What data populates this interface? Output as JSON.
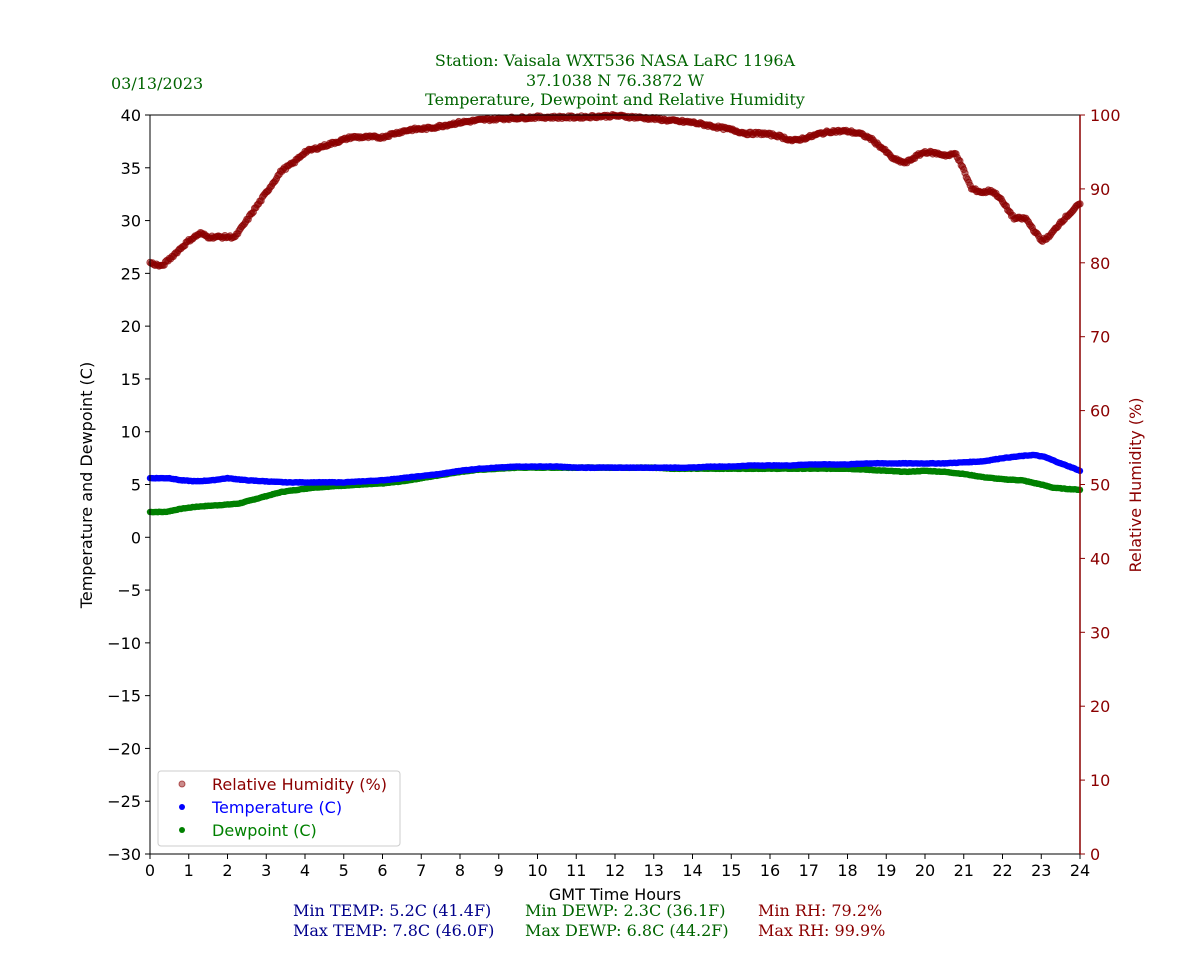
{
  "chart_data": {
    "type": "scatter",
    "title": {
      "line1": "Station:  Vaisala WXT536  NASA LaRC 1196A",
      "line2": "37.1038 N 76.3872 W",
      "line3": "Temperature, Dewpoint and Relative Humidity"
    },
    "date": "03/13/2023",
    "xlabel": "GMT Time Hours",
    "ylabel_left": "Temperature and Dewpoint (C)",
    "ylabel_right": "Relative Humidity (%)",
    "xlim": [
      0,
      24
    ],
    "ylim_left": [
      -30,
      40
    ],
    "ylim_right": [
      0,
      100
    ],
    "x_ticks": [
      "0",
      "1",
      "2",
      "3",
      "4",
      "5",
      "6",
      "7",
      "8",
      "9",
      "10",
      "11",
      "12",
      "13",
      "14",
      "15",
      "16",
      "17",
      "18",
      "19",
      "20",
      "21",
      "22",
      "23",
      "24"
    ],
    "y_left_ticks": [
      "−30",
      "−25",
      "−20",
      "−15",
      "−10",
      "−5",
      "0",
      "5",
      "10",
      "15",
      "20",
      "25",
      "30",
      "35",
      "40"
    ],
    "y_right_ticks": [
      "0",
      "10",
      "20",
      "30",
      "40",
      "50",
      "60",
      "70",
      "80",
      "90",
      "100"
    ],
    "legend": {
      "placement": "lower-left",
      "entries": [
        "Relative Humidity (%)",
        "Temperature (C)",
        "Dewpoint (C)"
      ]
    },
    "colors": {
      "rh": "#8b0000",
      "temp": "#0000ff",
      "dewp": "#008000",
      "title": "#006400",
      "temp_stats": "#00008b",
      "dewp_stats": "#006400",
      "rh_stats": "#8b0000"
    },
    "series": [
      {
        "name": "Relative Humidity (%)",
        "axis": "right",
        "points": [
          [
            0,
            80
          ],
          [
            0.3,
            79.5
          ],
          [
            0.5,
            80.5
          ],
          [
            0.8,
            82
          ],
          [
            1.0,
            83
          ],
          [
            1.3,
            84
          ],
          [
            1.5,
            83.5
          ],
          [
            1.8,
            83.5
          ],
          [
            2.0,
            83.5
          ],
          [
            2.2,
            83.5
          ],
          [
            2.4,
            85
          ],
          [
            2.6,
            86.5
          ],
          [
            2.8,
            88
          ],
          [
            3.0,
            89.5
          ],
          [
            3.2,
            91
          ],
          [
            3.4,
            92.5
          ],
          [
            3.7,
            93.5
          ],
          [
            4.0,
            95
          ],
          [
            4.3,
            95.5
          ],
          [
            4.6,
            96
          ],
          [
            4.9,
            96.5
          ],
          [
            5.2,
            97
          ],
          [
            5.6,
            97
          ],
          [
            6.0,
            97
          ],
          [
            6.3,
            97.5
          ],
          [
            6.7,
            98
          ],
          [
            7.2,
            98.2
          ],
          [
            7.6,
            98.6
          ],
          [
            8.0,
            99
          ],
          [
            8.5,
            99.3
          ],
          [
            9.0,
            99.5
          ],
          [
            9.5,
            99.6
          ],
          [
            10.0,
            99.7
          ],
          [
            10.5,
            99.7
          ],
          [
            11.0,
            99.7
          ],
          [
            11.5,
            99.8
          ],
          [
            12.0,
            99.9
          ],
          [
            12.5,
            99.7
          ],
          [
            13.0,
            99.5
          ],
          [
            13.5,
            99.2
          ],
          [
            14.0,
            99
          ],
          [
            14.5,
            98.5
          ],
          [
            15.0,
            98
          ],
          [
            15.4,
            97.5
          ],
          [
            15.8,
            97.5
          ],
          [
            16.2,
            97.2
          ],
          [
            16.6,
            96.5
          ],
          [
            17.0,
            97
          ],
          [
            17.3,
            97.5
          ],
          [
            17.6,
            97.8
          ],
          [
            18.0,
            97.8
          ],
          [
            18.3,
            97.5
          ],
          [
            18.6,
            96.8
          ],
          [
            18.9,
            95.5
          ],
          [
            19.2,
            94
          ],
          [
            19.5,
            93.5
          ],
          [
            19.8,
            94.5
          ],
          [
            20.0,
            95
          ],
          [
            20.3,
            94.8
          ],
          [
            20.6,
            94.5
          ],
          [
            20.8,
            94.8
          ],
          [
            21.0,
            92.5
          ],
          [
            21.2,
            90
          ],
          [
            21.5,
            89.5
          ],
          [
            21.7,
            89.8
          ],
          [
            21.9,
            89
          ],
          [
            22.1,
            87.5
          ],
          [
            22.3,
            86
          ],
          [
            22.6,
            86
          ],
          [
            22.8,
            84.5
          ],
          [
            23.0,
            83
          ],
          [
            23.2,
            83.5
          ],
          [
            23.5,
            85.5
          ],
          [
            23.8,
            87
          ],
          [
            24.0,
            88
          ]
        ]
      },
      {
        "name": "Temperature (C)",
        "axis": "left",
        "points": [
          [
            0,
            5.6
          ],
          [
            0.5,
            5.6
          ],
          [
            0.8,
            5.4
          ],
          [
            1.2,
            5.3
          ],
          [
            1.6,
            5.4
          ],
          [
            2.0,
            5.6
          ],
          [
            2.5,
            5.4
          ],
          [
            3.0,
            5.3
          ],
          [
            3.5,
            5.2
          ],
          [
            4.0,
            5.2
          ],
          [
            4.5,
            5.2
          ],
          [
            5.0,
            5.2
          ],
          [
            5.5,
            5.3
          ],
          [
            6.0,
            5.4
          ],
          [
            6.5,
            5.6
          ],
          [
            7.0,
            5.8
          ],
          [
            7.5,
            6.0
          ],
          [
            8.0,
            6.3
          ],
          [
            8.5,
            6.5
          ],
          [
            9.0,
            6.6
          ],
          [
            9.5,
            6.7
          ],
          [
            10.0,
            6.7
          ],
          [
            10.5,
            6.7
          ],
          [
            11.0,
            6.6
          ],
          [
            11.5,
            6.6
          ],
          [
            12.0,
            6.6
          ],
          [
            12.5,
            6.6
          ],
          [
            13.0,
            6.6
          ],
          [
            13.5,
            6.6
          ],
          [
            14.0,
            6.6
          ],
          [
            14.5,
            6.7
          ],
          [
            15.0,
            6.7
          ],
          [
            15.5,
            6.8
          ],
          [
            16.0,
            6.8
          ],
          [
            16.5,
            6.8
          ],
          [
            17.0,
            6.9
          ],
          [
            17.5,
            6.9
          ],
          [
            18.0,
            6.9
          ],
          [
            18.5,
            7.0
          ],
          [
            19.0,
            7.0
          ],
          [
            19.5,
            7.0
          ],
          [
            20.0,
            7.0
          ],
          [
            20.5,
            7.0
          ],
          [
            21.0,
            7.1
          ],
          [
            21.5,
            7.2
          ],
          [
            22.0,
            7.5
          ],
          [
            22.5,
            7.7
          ],
          [
            22.8,
            7.8
          ],
          [
            23.1,
            7.6
          ],
          [
            23.5,
            7.0
          ],
          [
            23.8,
            6.6
          ],
          [
            24.0,
            6.3
          ]
        ]
      },
      {
        "name": "Dewpoint (C)",
        "axis": "left",
        "points": [
          [
            0,
            2.4
          ],
          [
            0.4,
            2.4
          ],
          [
            0.8,
            2.7
          ],
          [
            1.2,
            2.9
          ],
          [
            1.6,
            3.0
          ],
          [
            2.0,
            3.1
          ],
          [
            2.3,
            3.2
          ],
          [
            2.6,
            3.5
          ],
          [
            3.0,
            3.9
          ],
          [
            3.4,
            4.3
          ],
          [
            3.8,
            4.5
          ],
          [
            4.2,
            4.7
          ],
          [
            4.6,
            4.8
          ],
          [
            5.0,
            4.9
          ],
          [
            5.5,
            5.0
          ],
          [
            6.0,
            5.1
          ],
          [
            6.5,
            5.3
          ],
          [
            7.0,
            5.6
          ],
          [
            7.5,
            5.9
          ],
          [
            8.0,
            6.2
          ],
          [
            8.5,
            6.4
          ],
          [
            9.0,
            6.5
          ],
          [
            9.5,
            6.6
          ],
          [
            10.0,
            6.6
          ],
          [
            10.5,
            6.6
          ],
          [
            11.0,
            6.6
          ],
          [
            11.5,
            6.6
          ],
          [
            12.0,
            6.6
          ],
          [
            12.5,
            6.6
          ],
          [
            13.0,
            6.6
          ],
          [
            13.5,
            6.5
          ],
          [
            14.0,
            6.5
          ],
          [
            14.5,
            6.5
          ],
          [
            15.0,
            6.5
          ],
          [
            15.5,
            6.5
          ],
          [
            16.0,
            6.5
          ],
          [
            16.5,
            6.5
          ],
          [
            17.0,
            6.5
          ],
          [
            17.5,
            6.5
          ],
          [
            18.0,
            6.5
          ],
          [
            18.5,
            6.4
          ],
          [
            19.0,
            6.3
          ],
          [
            19.5,
            6.2
          ],
          [
            20.0,
            6.3
          ],
          [
            20.5,
            6.2
          ],
          [
            21.0,
            6.0
          ],
          [
            21.5,
            5.7
          ],
          [
            22.0,
            5.5
          ],
          [
            22.5,
            5.4
          ],
          [
            23.0,
            5.0
          ],
          [
            23.3,
            4.7
          ],
          [
            23.6,
            4.6
          ],
          [
            24.0,
            4.5
          ]
        ]
      }
    ],
    "stats": {
      "min_temp": "Min TEMP: 5.2C (41.4F)",
      "max_temp": "Max TEMP: 7.8C (46.0F)",
      "min_dewp": "Min DEWP: 2.3C (36.1F)",
      "max_dewp": "Max DEWP: 6.8C (44.2F)",
      "min_rh": "Min RH: 79.2%",
      "max_rh": "Max RH: 99.9%"
    }
  }
}
